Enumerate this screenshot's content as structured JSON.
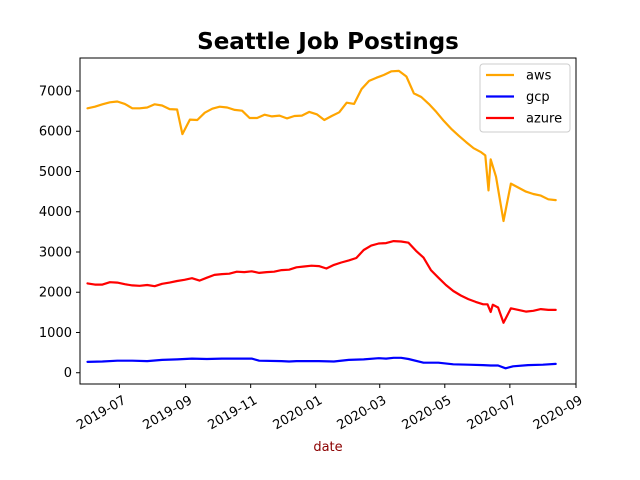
{
  "chart_data": {
    "type": "line",
    "title": "Seattle Job Postings",
    "xlabel": "date",
    "ylabel": "",
    "xlabel_color": "#8b0000",
    "x_range": [
      "2019-05-25",
      "2020-09-01"
    ],
    "ylim": [
      -280,
      7820
    ],
    "y_ticks": [
      0,
      1000,
      2000,
      3000,
      4000,
      5000,
      6000,
      7000
    ],
    "x_ticks": [
      {
        "date": "2019-07-01",
        "label": "2019-07"
      },
      {
        "date": "2019-09-01",
        "label": "2019-09"
      },
      {
        "date": "2019-11-01",
        "label": "2019-11"
      },
      {
        "date": "2020-01-01",
        "label": "2020-01"
      },
      {
        "date": "2020-03-01",
        "label": "2020-03"
      },
      {
        "date": "2020-05-01",
        "label": "2020-05"
      },
      {
        "date": "2020-07-01",
        "label": "2020-07"
      },
      {
        "date": "2020-09-01",
        "label": "2020-09"
      }
    ],
    "grid": false,
    "legend_position": "top-right",
    "series": [
      {
        "name": "aws",
        "color": "#ffa500",
        "points": [
          [
            "2019-06-01",
            6570
          ],
          [
            "2019-06-08",
            6610
          ],
          [
            "2019-06-15",
            6670
          ],
          [
            "2019-06-22",
            6720
          ],
          [
            "2019-06-29",
            6740
          ],
          [
            "2019-07-06",
            6680
          ],
          [
            "2019-07-13",
            6570
          ],
          [
            "2019-07-20",
            6570
          ],
          [
            "2019-07-27",
            6590
          ],
          [
            "2019-08-03",
            6670
          ],
          [
            "2019-08-10",
            6640
          ],
          [
            "2019-08-17",
            6550
          ],
          [
            "2019-08-24",
            6540
          ],
          [
            "2019-08-29",
            5930
          ],
          [
            "2019-09-05",
            6290
          ],
          [
            "2019-09-12",
            6280
          ],
          [
            "2019-09-19",
            6460
          ],
          [
            "2019-09-26",
            6560
          ],
          [
            "2019-10-03",
            6610
          ],
          [
            "2019-10-10",
            6590
          ],
          [
            "2019-10-17",
            6530
          ],
          [
            "2019-10-24",
            6510
          ],
          [
            "2019-10-31",
            6330
          ],
          [
            "2019-11-07",
            6330
          ],
          [
            "2019-11-14",
            6410
          ],
          [
            "2019-11-21",
            6370
          ],
          [
            "2019-11-28",
            6390
          ],
          [
            "2019-12-05",
            6320
          ],
          [
            "2019-12-12",
            6380
          ],
          [
            "2019-12-19",
            6390
          ],
          [
            "2019-12-26",
            6480
          ],
          [
            "2020-01-02",
            6420
          ],
          [
            "2020-01-09",
            6280
          ],
          [
            "2020-01-16",
            6380
          ],
          [
            "2020-01-23",
            6470
          ],
          [
            "2020-01-30",
            6710
          ],
          [
            "2020-02-06",
            6680
          ],
          [
            "2020-02-13",
            7050
          ],
          [
            "2020-02-20",
            7250
          ],
          [
            "2020-02-27",
            7330
          ],
          [
            "2020-03-05",
            7400
          ],
          [
            "2020-03-12",
            7490
          ],
          [
            "2020-03-19",
            7500
          ],
          [
            "2020-03-26",
            7360
          ],
          [
            "2020-04-02",
            6940
          ],
          [
            "2020-04-09",
            6850
          ],
          [
            "2020-04-16",
            6680
          ],
          [
            "2020-04-23",
            6480
          ],
          [
            "2020-04-30",
            6260
          ],
          [
            "2020-05-07",
            6060
          ],
          [
            "2020-05-14",
            5890
          ],
          [
            "2020-05-21",
            5730
          ],
          [
            "2020-05-28",
            5580
          ],
          [
            "2020-06-04",
            5480
          ],
          [
            "2020-06-08",
            5400
          ],
          [
            "2020-06-11",
            4530
          ],
          [
            "2020-06-13",
            5300
          ],
          [
            "2020-06-18",
            4870
          ],
          [
            "2020-06-25",
            3770
          ],
          [
            "2020-07-02",
            4700
          ],
          [
            "2020-07-09",
            4600
          ],
          [
            "2020-07-16",
            4500
          ],
          [
            "2020-07-23",
            4440
          ],
          [
            "2020-07-30",
            4400
          ],
          [
            "2020-08-06",
            4310
          ],
          [
            "2020-08-13",
            4290
          ]
        ]
      },
      {
        "name": "gcp",
        "color": "#0000ff",
        "points": [
          [
            "2019-06-01",
            270
          ],
          [
            "2019-06-15",
            280
          ],
          [
            "2019-06-29",
            300
          ],
          [
            "2019-07-13",
            300
          ],
          [
            "2019-07-27",
            290
          ],
          [
            "2019-08-10",
            320
          ],
          [
            "2019-08-24",
            330
          ],
          [
            "2019-09-07",
            350
          ],
          [
            "2019-09-21",
            340
          ],
          [
            "2019-10-05",
            350
          ],
          [
            "2019-10-19",
            350
          ],
          [
            "2019-11-02",
            350
          ],
          [
            "2019-11-09",
            300
          ],
          [
            "2019-11-30",
            290
          ],
          [
            "2019-12-07",
            280
          ],
          [
            "2019-12-14",
            290
          ],
          [
            "2020-01-04",
            290
          ],
          [
            "2020-01-18",
            280
          ],
          [
            "2020-02-01",
            320
          ],
          [
            "2020-02-15",
            330
          ],
          [
            "2020-02-29",
            360
          ],
          [
            "2020-03-07",
            350
          ],
          [
            "2020-03-14",
            370
          ],
          [
            "2020-03-21",
            370
          ],
          [
            "2020-03-28",
            340
          ],
          [
            "2020-04-11",
            250
          ],
          [
            "2020-04-25",
            250
          ],
          [
            "2020-05-09",
            210
          ],
          [
            "2020-05-23",
            200
          ],
          [
            "2020-06-06",
            190
          ],
          [
            "2020-06-13",
            180
          ],
          [
            "2020-06-20",
            180
          ],
          [
            "2020-06-27",
            110
          ],
          [
            "2020-07-04",
            160
          ],
          [
            "2020-07-18",
            190
          ],
          [
            "2020-08-01",
            200
          ],
          [
            "2020-08-13",
            220
          ]
        ]
      },
      {
        "name": "azure",
        "color": "#ff0000",
        "points": [
          [
            "2019-06-01",
            2220
          ],
          [
            "2019-06-08",
            2190
          ],
          [
            "2019-06-15",
            2190
          ],
          [
            "2019-06-22",
            2250
          ],
          [
            "2019-06-29",
            2240
          ],
          [
            "2019-07-06",
            2200
          ],
          [
            "2019-07-13",
            2170
          ],
          [
            "2019-07-20",
            2160
          ],
          [
            "2019-07-27",
            2180
          ],
          [
            "2019-08-03",
            2150
          ],
          [
            "2019-08-10",
            2210
          ],
          [
            "2019-08-17",
            2240
          ],
          [
            "2019-08-24",
            2280
          ],
          [
            "2019-08-31",
            2310
          ],
          [
            "2019-09-07",
            2350
          ],
          [
            "2019-09-14",
            2290
          ],
          [
            "2019-09-21",
            2360
          ],
          [
            "2019-09-28",
            2430
          ],
          [
            "2019-10-05",
            2450
          ],
          [
            "2019-10-12",
            2460
          ],
          [
            "2019-10-19",
            2510
          ],
          [
            "2019-10-26",
            2500
          ],
          [
            "2019-11-02",
            2520
          ],
          [
            "2019-11-09",
            2480
          ],
          [
            "2019-11-16",
            2500
          ],
          [
            "2019-11-23",
            2510
          ],
          [
            "2019-11-30",
            2550
          ],
          [
            "2019-12-07",
            2560
          ],
          [
            "2019-12-14",
            2620
          ],
          [
            "2019-12-21",
            2640
          ],
          [
            "2019-12-28",
            2660
          ],
          [
            "2020-01-04",
            2650
          ],
          [
            "2020-01-11",
            2590
          ],
          [
            "2020-01-18",
            2680
          ],
          [
            "2020-01-25",
            2740
          ],
          [
            "2020-02-01",
            2790
          ],
          [
            "2020-02-08",
            2850
          ],
          [
            "2020-02-15",
            3050
          ],
          [
            "2020-02-22",
            3160
          ],
          [
            "2020-02-29",
            3210
          ],
          [
            "2020-03-07",
            3220
          ],
          [
            "2020-03-14",
            3270
          ],
          [
            "2020-03-21",
            3260
          ],
          [
            "2020-03-28",
            3230
          ],
          [
            "2020-04-04",
            3030
          ],
          [
            "2020-04-11",
            2860
          ],
          [
            "2020-04-18",
            2550
          ],
          [
            "2020-04-25",
            2360
          ],
          [
            "2020-05-02",
            2180
          ],
          [
            "2020-05-09",
            2030
          ],
          [
            "2020-05-16",
            1920
          ],
          [
            "2020-05-23",
            1830
          ],
          [
            "2020-05-30",
            1760
          ],
          [
            "2020-06-06",
            1700
          ],
          [
            "2020-06-10",
            1700
          ],
          [
            "2020-06-13",
            1510
          ],
          [
            "2020-06-15",
            1690
          ],
          [
            "2020-06-20",
            1620
          ],
          [
            "2020-06-25",
            1240
          ],
          [
            "2020-07-02",
            1600
          ],
          [
            "2020-07-09",
            1560
          ],
          [
            "2020-07-16",
            1520
          ],
          [
            "2020-07-23",
            1540
          ],
          [
            "2020-07-30",
            1580
          ],
          [
            "2020-08-06",
            1560
          ],
          [
            "2020-08-13",
            1560
          ]
        ]
      }
    ]
  }
}
